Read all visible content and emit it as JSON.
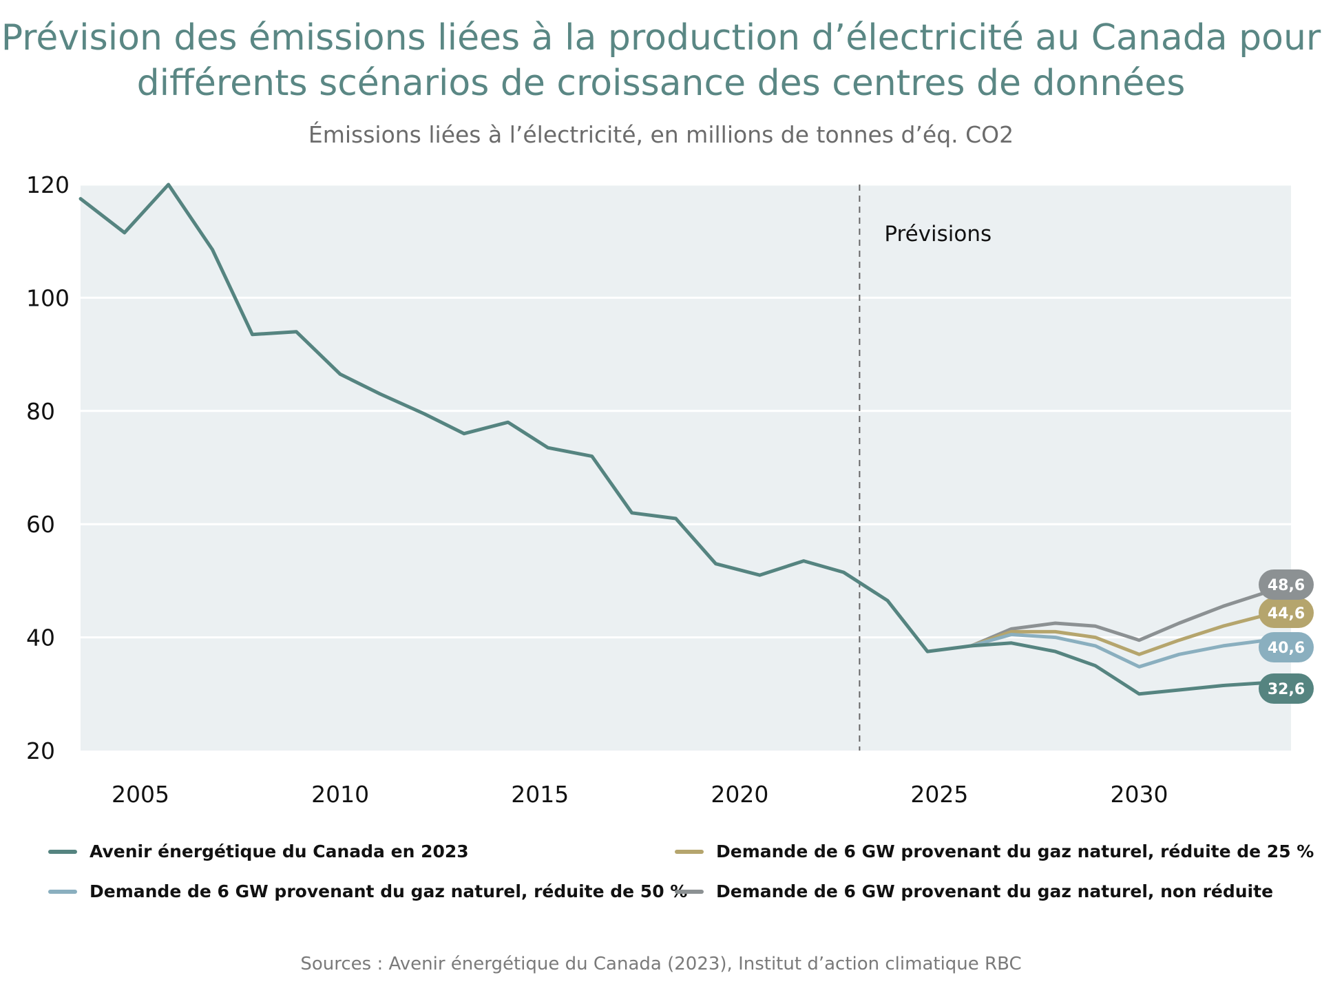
{
  "title_lines": [
    "Prévision des émissions liées à la production d’électricité au Canada pour",
    "différents scénarios de croissance des centres de données"
  ],
  "subtitle": "Émissions liées à l’électricité, en millions de tonnes d’éq. CO2",
  "source": "Sources : Avenir énergétique du Canada (2023), Institut d’action climatique RBC",
  "chart_data": {
    "type": "line",
    "title": "Prévision des émissions liées à la production d’électricité au Canada pour différents scénarios de croissance des centres de données",
    "subtitle": "Émissions liées à l’électricité, en millions de tonnes d’éq. CO2",
    "xlabel": "",
    "ylabel": "",
    "xlim": [
      2003.5,
      2033.8
    ],
    "ylim": [
      20,
      120
    ],
    "x_ticks": [
      2005,
      2010,
      2015,
      2020,
      2025,
      2030
    ],
    "y_ticks": [
      20,
      40,
      60,
      80,
      100,
      120
    ],
    "grid": true,
    "legend_position": "bottom",
    "annotation": {
      "x": 2023,
      "label": "Prévisions"
    },
    "series": [
      {
        "name": "Avenir énergétique du Canada en 2023",
        "color": "#558480",
        "end_label": "32,6",
        "x": [
          2003.5,
          2004.6,
          2005.7,
          2006.8,
          2007.8,
          2008.9,
          2010,
          2011,
          2012.1,
          2013.1,
          2014.2,
          2015.2,
          2016.3,
          2017.3,
          2018.4,
          2019.4,
          2020.5,
          2021.6,
          2022.6,
          2023.7,
          2024.7,
          2025.8,
          2026.8,
          2027.9,
          2028.9,
          2030,
          2031,
          2032.1,
          2033.2
        ],
        "y": [
          117.5,
          111.5,
          120,
          108.5,
          93.5,
          94,
          86.5,
          83,
          79.5,
          76,
          78,
          73.5,
          72,
          62,
          61,
          53,
          51,
          53.5,
          51.5,
          46.5,
          37.5,
          38.5,
          39,
          37.5,
          35,
          30,
          30.7,
          31.5,
          32
        ]
      },
      {
        "name": "Demande de 6 GW provenant du gaz naturel, réduite de 25 %",
        "color": "#b5a56d",
        "end_label": "44,6",
        "x": [
          2025.8,
          2026.8,
          2027.9,
          2028.9,
          2030,
          2031,
          2032.1,
          2033.2
        ],
        "y": [
          38.5,
          41,
          41,
          40,
          37,
          39.5,
          42,
          44
        ]
      },
      {
        "name": "Demande de 6 GW provenant du gaz naturel, réduite de 50 %",
        "color": "#8aafbf",
        "end_label": "40,6",
        "x": [
          2025.8,
          2026.8,
          2027.9,
          2028.9,
          2030,
          2031,
          2032.1,
          2033.2
        ],
        "y": [
          38.5,
          40.5,
          40,
          38.5,
          34.8,
          37,
          38.5,
          39.5
        ]
      },
      {
        "name": "Demande de 6 GW provenant du gaz naturel, non réduite",
        "color": "#8c9193",
        "end_label": "48,6",
        "x": [
          2025.8,
          2026.8,
          2027.9,
          2028.9,
          2030,
          2031,
          2032.1,
          2033.2
        ],
        "y": [
          38.5,
          41.5,
          42.5,
          42,
          39.5,
          42.5,
          45.5,
          48
        ]
      }
    ]
  },
  "legend": [
    {
      "label": "Avenir énergétique du Canada en 2023",
      "color": "#558480"
    },
    {
      "label": "Demande de 6 GW provenant du gaz naturel, réduite de 25 %",
      "color": "#b5a56d"
    },
    {
      "label": "Demande de 6 GW provenant du gaz naturel, réduite de 50 %",
      "color": "#8aafbf"
    },
    {
      "label": "Demande de 6 GW provenant du gaz naturel, non réduite",
      "color": "#8c9193"
    }
  ]
}
